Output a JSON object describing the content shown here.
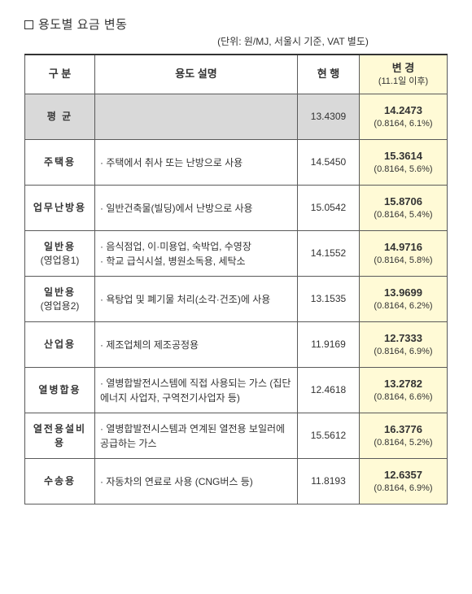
{
  "title": "용도별 요금 변동",
  "unit": "(단위: 원/MJ, 서울시 기준, VAT 별도)",
  "columns": {
    "c1": "구   분",
    "c2": "용도 설명",
    "c3": "현  행",
    "c4": "변  경",
    "c4sub": "(11.1일 이후)"
  },
  "rows": [
    {
      "cat": "평  균",
      "cat2": "",
      "desc": "",
      "cur": "13.4309",
      "chg": "14.2473",
      "delta": "(0.8164, 6.1%)",
      "avg": true
    },
    {
      "cat": "주택용",
      "cat2": "",
      "desc": "· 주택에서 취사 또는 난방으로 사용",
      "cur": "14.5450",
      "chg": "15.3614",
      "delta": "(0.8164, 5.6%)"
    },
    {
      "cat": "업무난방용",
      "cat2": "",
      "desc": "· 일반건축물(빌딩)에서 난방으로 사용",
      "cur": "15.0542",
      "chg": "15.8706",
      "delta": "(0.8164, 5.4%)"
    },
    {
      "cat": "일반용",
      "cat2": "(영업용1)",
      "desc": "· 음식점업, 이·미용업, 숙박업, 수영장\n· 학교 급식시설, 병원소독용, 세탁소",
      "cur": "14.1552",
      "chg": "14.9716",
      "delta": "(0.8164, 5.8%)"
    },
    {
      "cat": "일반용",
      "cat2": "(영업용2)",
      "desc": "· 욕탕업 및 폐기물 처리(소각·건조)에 사용",
      "cur": "13.1535",
      "chg": "13.9699",
      "delta": "(0.8164, 6.2%)"
    },
    {
      "cat": "산업용",
      "cat2": "",
      "desc": "· 제조업체의 제조공정용",
      "cur": "11.9169",
      "chg": "12.7333",
      "delta": "(0.8164, 6.9%)"
    },
    {
      "cat": "열병합용",
      "cat2": "",
      "desc": "· 열병합발전시스템에 직접 사용되는 가스 (집단에너지 사업자, 구역전기사업자 등)",
      "cur": "12.4618",
      "chg": "13.2782",
      "delta": "(0.8164, 6.6%)"
    },
    {
      "cat": "열전용설비용",
      "cat2": "",
      "desc": "· 열병합발전시스템과  연계된  열전용 보일러에 공급하는 가스",
      "cur": "15.5612",
      "chg": "16.3776",
      "delta": "(0.8164, 5.2%)"
    },
    {
      "cat": "수송용",
      "cat2": "",
      "desc": "· 자동차의 연료로 사용 (CNG버스 등)",
      "cur": "11.8193",
      "chg": "12.6357",
      "delta": "(0.8164, 6.9%)"
    }
  ]
}
